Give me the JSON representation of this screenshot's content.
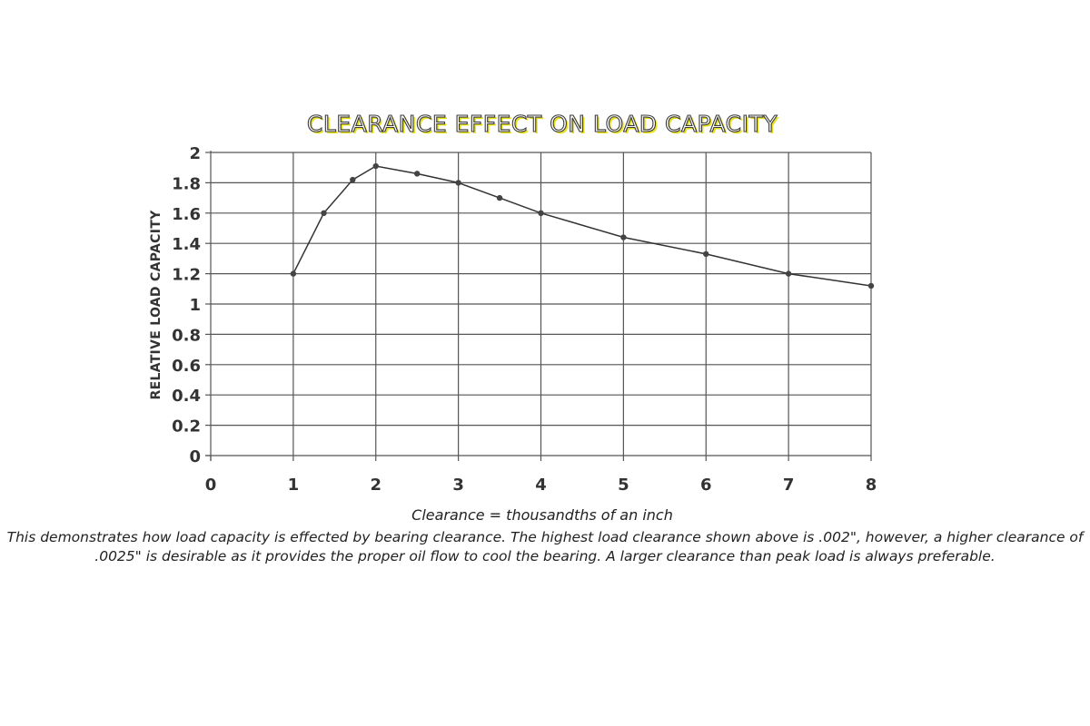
{
  "chart_data": {
    "type": "line",
    "title": "CLEARANCE EFFECT ON LOAD CAPACITY",
    "xlabel": "Clearance = thousandths of an inch",
    "ylabel": "RELATIVE LOAD CAPACITY",
    "xlim": [
      0,
      8
    ],
    "ylim": [
      0,
      2
    ],
    "x_ticks": [
      "0",
      "1",
      "2",
      "3",
      "4",
      "5",
      "6",
      "7",
      "8"
    ],
    "y_ticks": [
      "0",
      "0.2",
      "0.4",
      "0.6",
      "0.8",
      "1",
      "1.2",
      "1.4",
      "1.6",
      "1.8",
      "2"
    ],
    "grid": true,
    "series": [
      {
        "x": [
          1,
          1.37,
          1.72,
          2,
          2.5,
          3,
          3.5,
          4,
          5,
          6,
          7,
          8
        ],
        "values": [
          1.2,
          1.6,
          1.82,
          1.91,
          1.86,
          1.8,
          1.7,
          1.6,
          1.44,
          1.33,
          1.2,
          1.12
        ]
      }
    ]
  },
  "caption": "This demonstrates how load capacity is effected by bearing clearance. The highest load clearance shown above is .002\", however, a higher clearance of .0025\" is desirable as it provides the proper oil flow to cool the bearing. A larger clearance than peak load is always preferable.",
  "colors": {
    "title_fill": "#ffffff",
    "title_shadow": "#e8e020",
    "line": "#333333",
    "grid": "#555555"
  }
}
